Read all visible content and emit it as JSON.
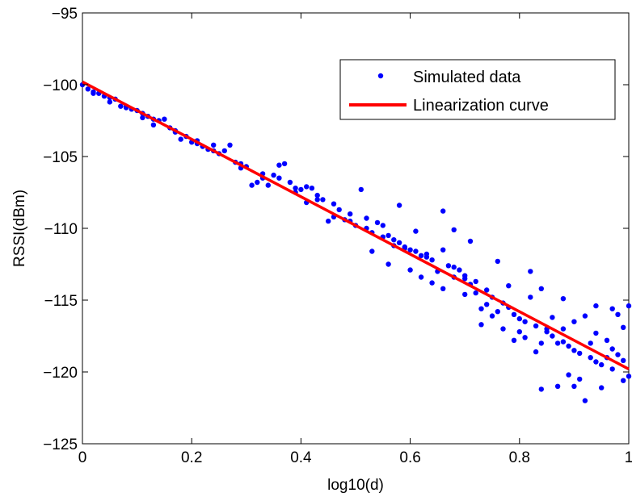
{
  "chart_data": {
    "type": "scatter",
    "title": "",
    "xlabel": "log10(d)",
    "ylabel": "RSSI(dBm)",
    "xlim": [
      0,
      1
    ],
    "ylim": [
      -125,
      -95
    ],
    "xticks": [
      0,
      0.2,
      0.4,
      0.6,
      0.8,
      1
    ],
    "xtick_labels": [
      "0",
      "0.2",
      "0.4",
      "0.6",
      "0.8",
      "1"
    ],
    "yticks": [
      -125,
      -120,
      -115,
      -110,
      -105,
      -100,
      -95
    ],
    "ytick_labels": [
      "−125",
      "−120",
      "−115",
      "−110",
      "−105",
      "−100",
      "−95"
    ],
    "grid": false,
    "legend_position": "top-right",
    "series": [
      {
        "name": "Simulated data",
        "kind": "scatter",
        "color": "#0000ff",
        "points": [
          [
            0.0,
            -100.0
          ],
          [
            0.01,
            -100.3
          ],
          [
            0.02,
            -100.5
          ],
          [
            0.03,
            -100.6
          ],
          [
            0.04,
            -100.8
          ],
          [
            0.05,
            -100.9
          ],
          [
            0.06,
            -101.0
          ],
          [
            0.07,
            -101.5
          ],
          [
            0.08,
            -101.6
          ],
          [
            0.09,
            -101.7
          ],
          [
            0.1,
            -101.8
          ],
          [
            0.11,
            -102.0
          ],
          [
            0.12,
            -102.2
          ],
          [
            0.13,
            -102.4
          ],
          [
            0.14,
            -102.5
          ],
          [
            0.15,
            -102.4
          ],
          [
            0.16,
            -103.0
          ],
          [
            0.17,
            -103.2
          ],
          [
            0.18,
            -103.8
          ],
          [
            0.19,
            -103.6
          ],
          [
            0.2,
            -104.0
          ],
          [
            0.21,
            -103.9
          ],
          [
            0.22,
            -104.3
          ],
          [
            0.23,
            -104.5
          ],
          [
            0.24,
            -104.6
          ],
          [
            0.25,
            -104.8
          ],
          [
            0.26,
            -104.6
          ],
          [
            0.27,
            -104.2
          ],
          [
            0.28,
            -105.4
          ],
          [
            0.29,
            -105.5
          ],
          [
            0.3,
            -105.7
          ],
          [
            0.31,
            -107.0
          ],
          [
            0.32,
            -106.8
          ],
          [
            0.33,
            -106.5
          ],
          [
            0.34,
            -107.0
          ],
          [
            0.35,
            -106.3
          ],
          [
            0.36,
            -105.6
          ],
          [
            0.37,
            -105.5
          ],
          [
            0.38,
            -106.8
          ],
          [
            0.39,
            -107.2
          ],
          [
            0.4,
            -107.3
          ],
          [
            0.41,
            -107.1
          ],
          [
            0.42,
            -107.2
          ],
          [
            0.43,
            -107.7
          ],
          [
            0.44,
            -108.0
          ],
          [
            0.45,
            -109.5
          ],
          [
            0.46,
            -108.3
          ],
          [
            0.47,
            -108.7
          ],
          [
            0.48,
            -109.4
          ],
          [
            0.49,
            -109.5
          ],
          [
            0.5,
            -109.8
          ],
          [
            0.51,
            -107.3
          ],
          [
            0.52,
            -110.0
          ],
          [
            0.53,
            -110.3
          ],
          [
            0.54,
            -109.6
          ],
          [
            0.55,
            -110.6
          ],
          [
            0.56,
            -110.5
          ],
          [
            0.57,
            -110.8
          ],
          [
            0.58,
            -111.0
          ],
          [
            0.59,
            -111.3
          ],
          [
            0.6,
            -111.5
          ],
          [
            0.61,
            -111.6
          ],
          [
            0.62,
            -111.9
          ],
          [
            0.63,
            -112.0
          ],
          [
            0.64,
            -112.2
          ],
          [
            0.65,
            -113.0
          ],
          [
            0.66,
            -108.8
          ],
          [
            0.67,
            -112.6
          ],
          [
            0.68,
            -113.4
          ],
          [
            0.69,
            -112.9
          ],
          [
            0.7,
            -113.5
          ],
          [
            0.71,
            -113.9
          ],
          [
            0.72,
            -114.5
          ],
          [
            0.73,
            -116.7
          ],
          [
            0.74,
            -114.3
          ],
          [
            0.75,
            -114.8
          ],
          [
            0.76,
            -115.8
          ],
          [
            0.77,
            -115.2
          ],
          [
            0.78,
            -115.5
          ],
          [
            0.79,
            -116.0
          ],
          [
            0.8,
            -116.3
          ],
          [
            0.81,
            -117.6
          ],
          [
            0.82,
            -114.8
          ],
          [
            0.83,
            -116.8
          ],
          [
            0.84,
            -121.2
          ],
          [
            0.85,
            -117.2
          ],
          [
            0.86,
            -117.5
          ],
          [
            0.87,
            -118.0
          ],
          [
            0.88,
            -117.9
          ],
          [
            0.89,
            -120.2
          ],
          [
            0.9,
            -118.5
          ],
          [
            0.91,
            -118.7
          ],
          [
            0.92,
            -122.0
          ],
          [
            0.93,
            -119.0
          ],
          [
            0.94,
            -119.3
          ],
          [
            0.95,
            -119.5
          ],
          [
            0.96,
            -117.8
          ],
          [
            0.97,
            -119.8
          ],
          [
            0.98,
            -118.8
          ],
          [
            0.99,
            -119.2
          ],
          [
            1.0,
            -120.3
          ],
          [
            0.02,
            -100.6
          ],
          [
            0.05,
            -101.2
          ],
          [
            0.08,
            -101.5
          ],
          [
            0.11,
            -102.3
          ],
          [
            0.13,
            -102.8
          ],
          [
            0.17,
            -103.3
          ],
          [
            0.21,
            -104.1
          ],
          [
            0.24,
            -104.2
          ],
          [
            0.29,
            -105.8
          ],
          [
            0.33,
            -106.2
          ],
          [
            0.36,
            -106.5
          ],
          [
            0.39,
            -107.5
          ],
          [
            0.41,
            -108.2
          ],
          [
            0.43,
            -108.0
          ],
          [
            0.46,
            -109.2
          ],
          [
            0.49,
            -109.0
          ],
          [
            0.52,
            -109.3
          ],
          [
            0.55,
            -109.8
          ],
          [
            0.57,
            -111.2
          ],
          [
            0.59,
            -111.4
          ],
          [
            0.61,
            -110.2
          ],
          [
            0.63,
            -111.8
          ],
          [
            0.66,
            -111.5
          ],
          [
            0.68,
            -112.7
          ],
          [
            0.7,
            -113.3
          ],
          [
            0.72,
            -113.7
          ],
          [
            0.74,
            -115.3
          ],
          [
            0.76,
            -112.3
          ],
          [
            0.78,
            -114.0
          ],
          [
            0.8,
            -117.2
          ],
          [
            0.82,
            -113.0
          ],
          [
            0.84,
            -118.0
          ],
          [
            0.86,
            -116.2
          ],
          [
            0.88,
            -114.9
          ],
          [
            0.9,
            -116.5
          ],
          [
            0.92,
            -116.1
          ],
          [
            0.94,
            -115.4
          ],
          [
            0.96,
            -119.0
          ],
          [
            0.98,
            -116.0
          ],
          [
            1.0,
            -115.4
          ],
          [
            0.53,
            -111.6
          ],
          [
            0.56,
            -112.5
          ],
          [
            0.58,
            -108.4
          ],
          [
            0.6,
            -112.9
          ],
          [
            0.62,
            -113.4
          ],
          [
            0.64,
            -113.8
          ],
          [
            0.66,
            -114.2
          ],
          [
            0.68,
            -110.1
          ],
          [
            0.7,
            -114.6
          ],
          [
            0.71,
            -110.9
          ],
          [
            0.73,
            -115.6
          ],
          [
            0.75,
            -116.1
          ],
          [
            0.77,
            -117.0
          ],
          [
            0.79,
            -117.8
          ],
          [
            0.81,
            -116.5
          ],
          [
            0.83,
            -118.6
          ],
          [
            0.85,
            -117.0
          ],
          [
            0.87,
            -121.0
          ],
          [
            0.89,
            -118.2
          ],
          [
            0.91,
            -120.5
          ],
          [
            0.93,
            -118.0
          ],
          [
            0.95,
            -121.1
          ],
          [
            0.97,
            -118.4
          ],
          [
            0.99,
            -120.6
          ],
          [
            0.9,
            -121.0
          ],
          [
            0.84,
            -114.2
          ],
          [
            0.88,
            -117.0
          ],
          [
            0.94,
            -117.3
          ],
          [
            0.97,
            -115.6
          ],
          [
            0.99,
            -116.9
          ]
        ]
      },
      {
        "name": "Linearization curve",
        "kind": "line",
        "color": "#ff0000",
        "x": [
          0,
          1
        ],
        "y": [
          -99.8,
          -119.8
        ]
      }
    ]
  }
}
